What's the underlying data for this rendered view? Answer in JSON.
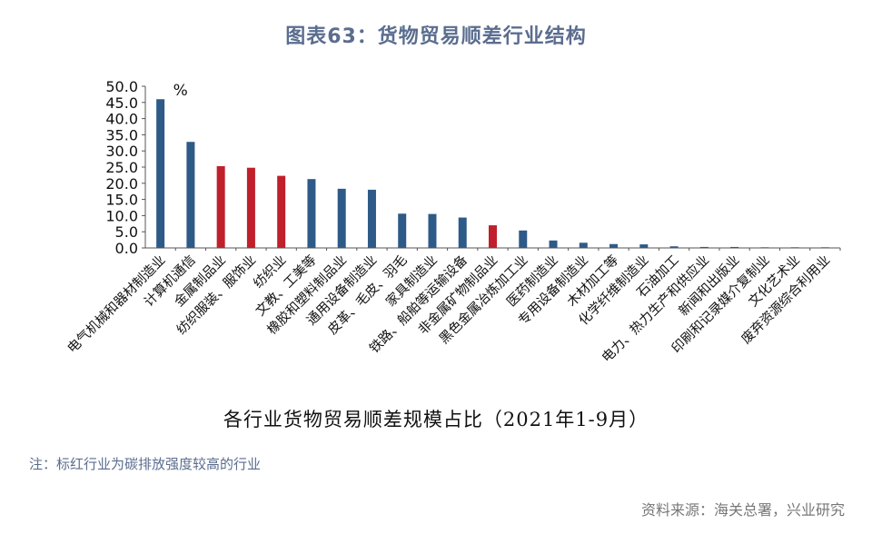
{
  "chart_data": {
    "type": "bar",
    "title": "图表63：货物贸易顺差行业结构",
    "xlabel": "各行业货物贸易顺差规模占比（2021年1-9月）",
    "unit_label": "%",
    "ylim": [
      0,
      50
    ],
    "yticks": [
      "0.0",
      "5.0",
      "10.0",
      "15.0",
      "20.0",
      "25.0",
      "30.0",
      "35.0",
      "40.0",
      "45.0",
      "50.0"
    ],
    "categories": [
      "电气机械和器材制造业",
      "计算机通信",
      "金属制品业",
      "纺织服装、服饰业",
      "纺织业",
      "文教、工美等",
      "橡胶和塑料制品业",
      "通用设备制造业",
      "皮革、毛皮、羽毛",
      "家具制造业",
      "铁路、船舶等运输设备",
      "非金属矿物制品业",
      "黑色金属冶炼加工业",
      "医药制造业",
      "专用设备制造业",
      "木材加工等",
      "化学纤维制造业",
      "石油加工",
      "电力、热力生产和供应业",
      "新闻和出版业",
      "印刷和记录媒介复制业",
      "文化艺术业",
      "废弃资源综合利用业"
    ],
    "values": [
      46.0,
      32.8,
      25.3,
      24.8,
      22.3,
      21.3,
      18.3,
      18.0,
      10.6,
      10.5,
      9.4,
      7.0,
      5.4,
      2.3,
      1.6,
      1.2,
      1.1,
      0.5,
      0.3,
      0.3,
      0.2,
      0.2,
      0.2
    ],
    "highlighted": [
      false,
      false,
      true,
      true,
      true,
      false,
      false,
      false,
      false,
      false,
      false,
      true,
      false,
      false,
      false,
      false,
      false,
      false,
      false,
      false,
      false,
      false,
      false
    ],
    "colors": {
      "default": "#2e5a88",
      "highlight": "#c0202b",
      "axis": "#555555"
    }
  },
  "note": "注：标红行业为碳排放强度较高的行业",
  "source": "资料来源：海关总署，兴业研究"
}
